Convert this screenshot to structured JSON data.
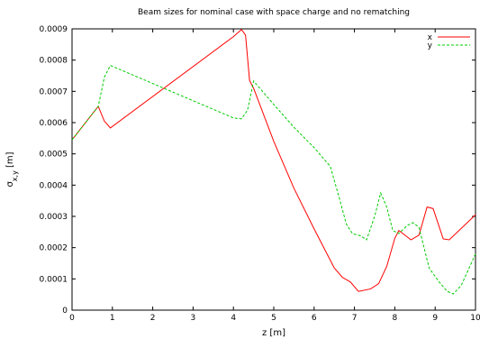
{
  "chart_data": {
    "type": "line",
    "title": "Beam sizes for nominal case with space charge and no rematching",
    "xlabel": "z [m]",
    "ylabel_main": "σ",
    "ylabel_sub": "x,y",
    "ylabel_unit": " [m]",
    "xlim": [
      0,
      10
    ],
    "ylim": [
      0,
      0.0009
    ],
    "xticks": [
      0,
      1,
      2,
      3,
      4,
      5,
      6,
      7,
      8,
      9,
      10
    ],
    "xtick_labels": [
      "0",
      "1",
      "2",
      "3",
      "4",
      "5",
      "6",
      "7",
      "8",
      "9",
      "10"
    ],
    "yticks": [
      0,
      0.0001,
      0.0002,
      0.0003,
      0.0004,
      0.0005,
      0.0006,
      0.0007,
      0.0008,
      0.0009
    ],
    "ytick_labels": [
      "0",
      "0.0001",
      "0.0002",
      "0.0003",
      "0.0004",
      "0.0005",
      "0.0006",
      "0.0007",
      "0.0008",
      "0.0009"
    ],
    "grid": false,
    "legend_position": "top-right",
    "series": [
      {
        "name": "x",
        "color": "#ff0000",
        "dash": "solid",
        "points": [
          [
            0,
            0.000545
          ],
          [
            0.65,
            0.000652
          ],
          [
            0.8,
            0.000605
          ],
          [
            0.95,
            0.000583
          ],
          [
            4.0,
            0.000875
          ],
          [
            4.2,
            0.000898
          ],
          [
            4.3,
            0.00088
          ],
          [
            4.4,
            0.000735
          ],
          [
            4.5,
            0.00071
          ],
          [
            5.0,
            0.00054
          ],
          [
            5.5,
            0.00039
          ],
          [
            6.0,
            0.00026
          ],
          [
            6.3,
            0.000185
          ],
          [
            6.5,
            0.000135
          ],
          [
            6.7,
            0.000105
          ],
          [
            6.9,
            9e-05
          ],
          [
            7.1,
            6e-05
          ],
          [
            7.4,
            6.8e-05
          ],
          [
            7.6,
            8.5e-05
          ],
          [
            7.8,
            0.00014
          ],
          [
            8.0,
            0.00023
          ],
          [
            8.1,
            0.000255
          ],
          [
            8.3,
            0.000235
          ],
          [
            8.4,
            0.000225
          ],
          [
            8.6,
            0.00024
          ],
          [
            8.8,
            0.00033
          ],
          [
            8.95,
            0.000325
          ],
          [
            9.2,
            0.000228
          ],
          [
            9.35,
            0.000225
          ],
          [
            10.0,
            0.000305
          ]
        ]
      },
      {
        "name": "y",
        "color": "#00cc00",
        "dash": "dashed",
        "points": [
          [
            0,
            0.000545
          ],
          [
            0.65,
            0.000652
          ],
          [
            0.8,
            0.000745
          ],
          [
            0.95,
            0.000783
          ],
          [
            4.0,
            0.000615
          ],
          [
            4.2,
            0.000612
          ],
          [
            4.35,
            0.00064
          ],
          [
            4.5,
            0.000733
          ],
          [
            5.0,
            0.000658
          ],
          [
            5.5,
            0.000585
          ],
          [
            6.0,
            0.00052
          ],
          [
            6.4,
            0.00046
          ],
          [
            6.6,
            0.00037
          ],
          [
            6.8,
            0.000275
          ],
          [
            6.95,
            0.000245
          ],
          [
            7.15,
            0.000238
          ],
          [
            7.3,
            0.000225
          ],
          [
            7.5,
            0.0003
          ],
          [
            7.65,
            0.000375
          ],
          [
            7.8,
            0.00033
          ],
          [
            7.95,
            0.000255
          ],
          [
            8.1,
            0.000245
          ],
          [
            8.3,
            0.00027
          ],
          [
            8.45,
            0.00028
          ],
          [
            8.6,
            0.000265
          ],
          [
            8.85,
            0.000135
          ],
          [
            9.1,
            9e-05
          ],
          [
            9.3,
            6e-05
          ],
          [
            9.45,
            5.2e-05
          ],
          [
            9.65,
            8e-05
          ],
          [
            10.0,
            0.00018
          ]
        ]
      }
    ]
  }
}
